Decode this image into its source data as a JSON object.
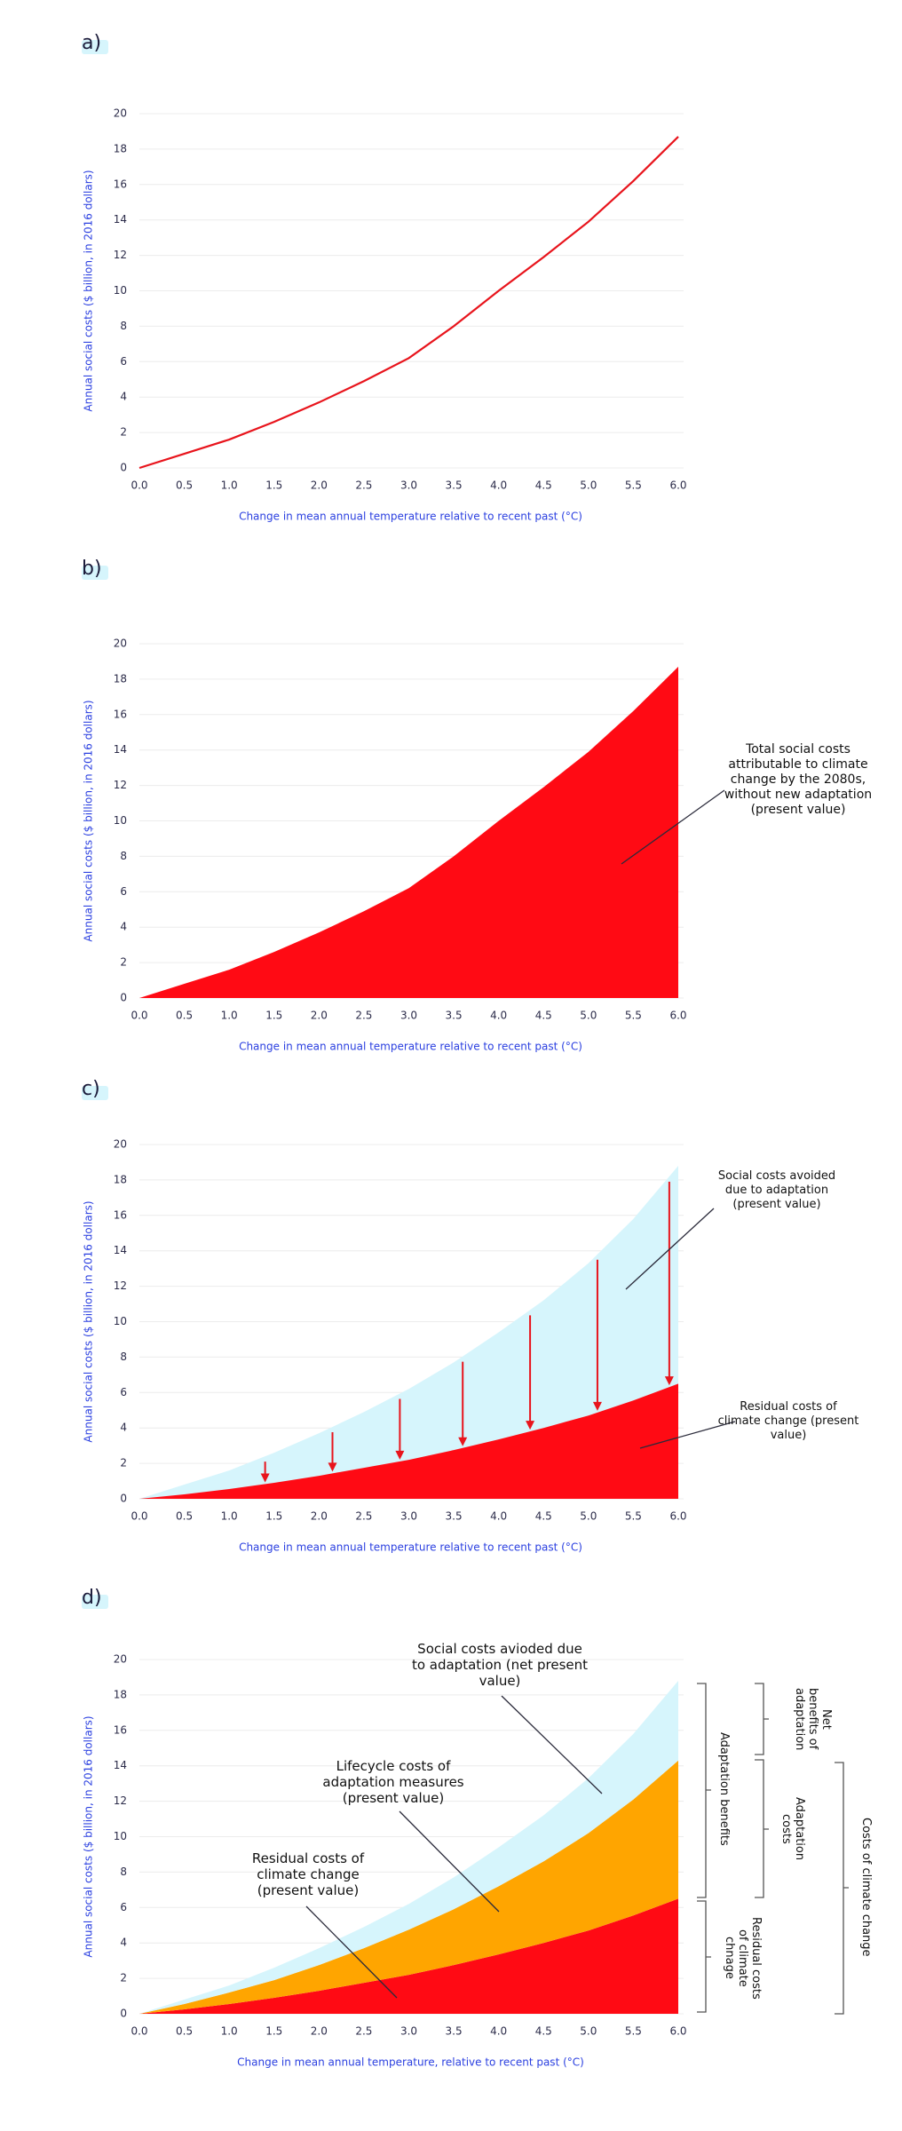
{
  "chart_data": [
    {
      "type": "line",
      "label": "a)",
      "xlabel": "Change in mean annual temperature relative to recent past (°C)",
      "ylabel": "Annual social costs ($ billion, in 2016 dollars)",
      "x": [
        0,
        0.5,
        1,
        1.5,
        2,
        2.5,
        3,
        3.5,
        4,
        4.5,
        5,
        5.5,
        6
      ],
      "series": [
        {
          "color": "#e8141c",
          "values": [
            0,
            0.8,
            1.6,
            2.6,
            3.7,
            4.9,
            6.2,
            8.0,
            10.0,
            11.9,
            13.9,
            16.2,
            18.7
          ]
        }
      ],
      "xlim": [
        0,
        6
      ],
      "ylim": [
        0,
        20
      ],
      "xticks": [
        {
          "value": 0,
          "label": "0.0"
        },
        {
          "value": 0.5,
          "label": "0.5"
        },
        {
          "value": 1,
          "label": "1.0"
        },
        {
          "value": 1.5,
          "label": "1.5"
        },
        {
          "value": 2,
          "label": "2.0"
        },
        {
          "value": 2.5,
          "label": "2.5"
        },
        {
          "value": 3,
          "label": "3.0"
        },
        {
          "value": 3.5,
          "label": "3.5"
        },
        {
          "value": 4,
          "label": "4.0"
        },
        {
          "value": 4.5,
          "label": "4.5"
        },
        {
          "value": 5,
          "label": "5.0"
        },
        {
          "value": 5.5,
          "label": "5.5"
        },
        {
          "value": 6,
          "label": "6.0"
        }
      ],
      "yticks": [
        0,
        2,
        4,
        6,
        8,
        10,
        12,
        14,
        16,
        18,
        20
      ],
      "grid": true
    },
    {
      "type": "area",
      "stacked": false,
      "label": "b)",
      "xlabel": "Change in mean annual temperature relative to recent past (°C)",
      "ylabel": "Annual social costs ($ billion, in 2016 dollars)",
      "annotations": [
        "Total social costs attributable to climate change by the 2080s, without new adaptation (present value)"
      ],
      "x": [
        0,
        0.5,
        1,
        1.5,
        2,
        2.5,
        3,
        3.5,
        4,
        4.5,
        5,
        5.5,
        6
      ],
      "series": [
        {
          "color": "#ff0a14",
          "values": [
            0,
            0.8,
            1.6,
            2.6,
            3.7,
            4.9,
            6.2,
            8.0,
            10.0,
            11.9,
            13.9,
            16.2,
            18.7
          ]
        }
      ],
      "xlim": [
        0,
        6
      ],
      "ylim": [
        0,
        20
      ],
      "xticks": [
        {
          "value": 0,
          "label": "0.0"
        },
        {
          "value": 0.5,
          "label": "0.5"
        },
        {
          "value": 1,
          "label": "1.0"
        },
        {
          "value": 1.5,
          "label": "1.5"
        },
        {
          "value": 2,
          "label": "2.0"
        },
        {
          "value": 2.5,
          "label": "2.5"
        },
        {
          "value": 3,
          "label": "3.0"
        },
        {
          "value": 3.5,
          "label": "3.5"
        },
        {
          "value": 4,
          "label": "4.0"
        },
        {
          "value": 4.5,
          "label": "4.5"
        },
        {
          "value": 5,
          "label": "5.0"
        },
        {
          "value": 5.5,
          "label": "5.5"
        },
        {
          "value": 6,
          "label": "6.0"
        }
      ],
      "yticks": [
        0,
        2,
        4,
        6,
        8,
        10,
        12,
        14,
        16,
        18,
        20
      ],
      "grid": true
    },
    {
      "type": "area",
      "stacked": false,
      "label": "c)",
      "xlabel": "Change in mean annual temperature relative to recent past (°C)",
      "ylabel": "Annual social costs ($ billion, in 2016 dollars)",
      "annotations": [
        "Social costs avoided due to adaptation (present value)",
        "Residual costs of climate change (present value)"
      ],
      "x": [
        0,
        0.5,
        1,
        1.5,
        2,
        2.5,
        3,
        3.5,
        4,
        4.5,
        5,
        5.5,
        6
      ],
      "series": [
        {
          "color": "#d6f5fc",
          "values": [
            0,
            0.8,
            1.6,
            2.6,
            3.7,
            4.9,
            6.2,
            7.7,
            9.4,
            11.2,
            13.3,
            15.8,
            18.8
          ]
        },
        {
          "color": "#ff0a14",
          "values": [
            0,
            0.25,
            0.55,
            0.9,
            1.3,
            1.75,
            2.2,
            2.75,
            3.35,
            4.0,
            4.7,
            5.55,
            6.5
          ]
        }
      ],
      "arrows": {
        "color": "#e8141c",
        "x": [
          1.4,
          2.15,
          2.9,
          3.6,
          4.35,
          5.1,
          5.9
        ]
      },
      "xlim": [
        0,
        6
      ],
      "ylim": [
        0,
        20
      ],
      "xticks": [
        {
          "value": 0,
          "label": "0.0"
        },
        {
          "value": 0.5,
          "label": "0.5"
        },
        {
          "value": 1,
          "label": "1.0"
        },
        {
          "value": 1.5,
          "label": "1.5"
        },
        {
          "value": 2,
          "label": "2.0"
        },
        {
          "value": 2.5,
          "label": "2.5"
        },
        {
          "value": 3,
          "label": "3.0"
        },
        {
          "value": 3.5,
          "label": "3.5"
        },
        {
          "value": 4,
          "label": "4.0"
        },
        {
          "value": 4.5,
          "label": "4.5"
        },
        {
          "value": 5,
          "label": "5.0"
        },
        {
          "value": 5.5,
          "label": "5.5"
        },
        {
          "value": 6,
          "label": "6.0"
        }
      ],
      "yticks": [
        0,
        2,
        4,
        6,
        8,
        10,
        12,
        14,
        16,
        18,
        20
      ],
      "grid": true
    },
    {
      "type": "area",
      "stacked": true,
      "label": "d)",
      "xlabel": "Change in mean annual temperature, relative to recent past (°C)",
      "ylabel": "Annual social costs ($ billion, in 2016 dollars)",
      "annotations": [
        "Social costs avioded due to adaptation (net present value)",
        "Lifecycle costs of adaptation measures (present value)",
        "Residual costs of climate change (present value)",
        "Net benefits of adaptation",
        "Adaptation benefits",
        "Adaptation costs",
        "Residual costs of climate chnage",
        "Costs of climate change"
      ],
      "x": [
        0,
        0.5,
        1,
        1.5,
        2,
        2.5,
        3,
        3.5,
        4,
        4.5,
        5,
        5.5,
        6
      ],
      "series": [
        {
          "color": "#ff0a14",
          "values": [
            0,
            0.25,
            0.55,
            0.9,
            1.3,
            1.75,
            2.2,
            2.75,
            3.35,
            4.0,
            4.7,
            5.55,
            6.5
          ]
        },
        {
          "color": "#ffa500",
          "values": [
            0,
            0.3,
            0.65,
            1.0,
            1.45,
            1.95,
            2.55,
            3.15,
            3.85,
            4.6,
            5.5,
            6.55,
            7.8
          ]
        },
        {
          "color": "#d6f5fc",
          "values": [
            0,
            0.25,
            0.4,
            0.7,
            0.95,
            1.2,
            1.45,
            1.8,
            2.2,
            2.6,
            3.1,
            3.7,
            4.5
          ]
        }
      ],
      "xlim": [
        0,
        6
      ],
      "ylim": [
        0,
        20
      ],
      "xticks": [
        {
          "value": 0,
          "label": "0.0"
        },
        {
          "value": 0.5,
          "label": "0.5"
        },
        {
          "value": 1,
          "label": "1.0"
        },
        {
          "value": 1.5,
          "label": "1.5"
        },
        {
          "value": 2,
          "label": "2.0"
        },
        {
          "value": 2.5,
          "label": "2.5"
        },
        {
          "value": 3,
          "label": "3.0"
        },
        {
          "value": 3.5,
          "label": "3.5"
        },
        {
          "value": 4,
          "label": "4.0"
        },
        {
          "value": 4.5,
          "label": "4.5"
        },
        {
          "value": 5,
          "label": "5.0"
        },
        {
          "value": 5.5,
          "label": "5.5"
        },
        {
          "value": 6,
          "label": "6.0"
        }
      ],
      "yticks": [
        0,
        2,
        4,
        6,
        8,
        10,
        12,
        14,
        16,
        18,
        20
      ],
      "grid": true
    }
  ]
}
